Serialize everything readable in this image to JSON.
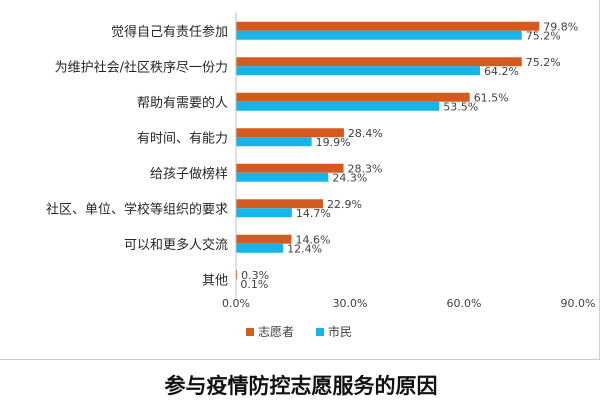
{
  "caption": "参与疫情防控志愿服务的原因",
  "colors": {
    "volunteer": "#D55A1F",
    "citizen": "#18B4E8",
    "axis": "#bfbfbf",
    "grid": "#d9d9d9"
  },
  "chart_data": {
    "type": "bar",
    "orientation": "horizontal",
    "categories": [
      "觉得自己有责任参加",
      "为维护社会/社区秩序尽一份力",
      "帮助有需要的人",
      "有时间、有能力",
      "给孩子做榜样",
      "社区、单位、学校等组织的要求",
      "可以和更多人交流",
      "其他"
    ],
    "series": [
      {
        "name": "志愿者",
        "values": [
          79.8,
          75.2,
          61.5,
          28.4,
          28.3,
          22.9,
          14.6,
          0.3
        ],
        "labels": [
          "79.8%",
          "75.2%",
          "61.5%",
          "28.4%",
          "28.3%",
          "22.9%",
          "14.6%",
          "0.3%"
        ]
      },
      {
        "name": "市民",
        "values": [
          75.2,
          64.2,
          53.5,
          19.9,
          24.3,
          14.7,
          12.4,
          0.1
        ],
        "labels": [
          "75.2%",
          "64.2%",
          "53.5%",
          "19.9%",
          "24.3%",
          "14.7%",
          "12.4%",
          "0.1%"
        ]
      }
    ],
    "xlim": [
      0,
      90
    ],
    "ticks": [
      0,
      30,
      60,
      90
    ],
    "tick_labels": [
      "0.0%",
      "30.0%",
      "60.0%",
      "90.0%"
    ],
    "legend_position": "bottom",
    "grid": false
  }
}
